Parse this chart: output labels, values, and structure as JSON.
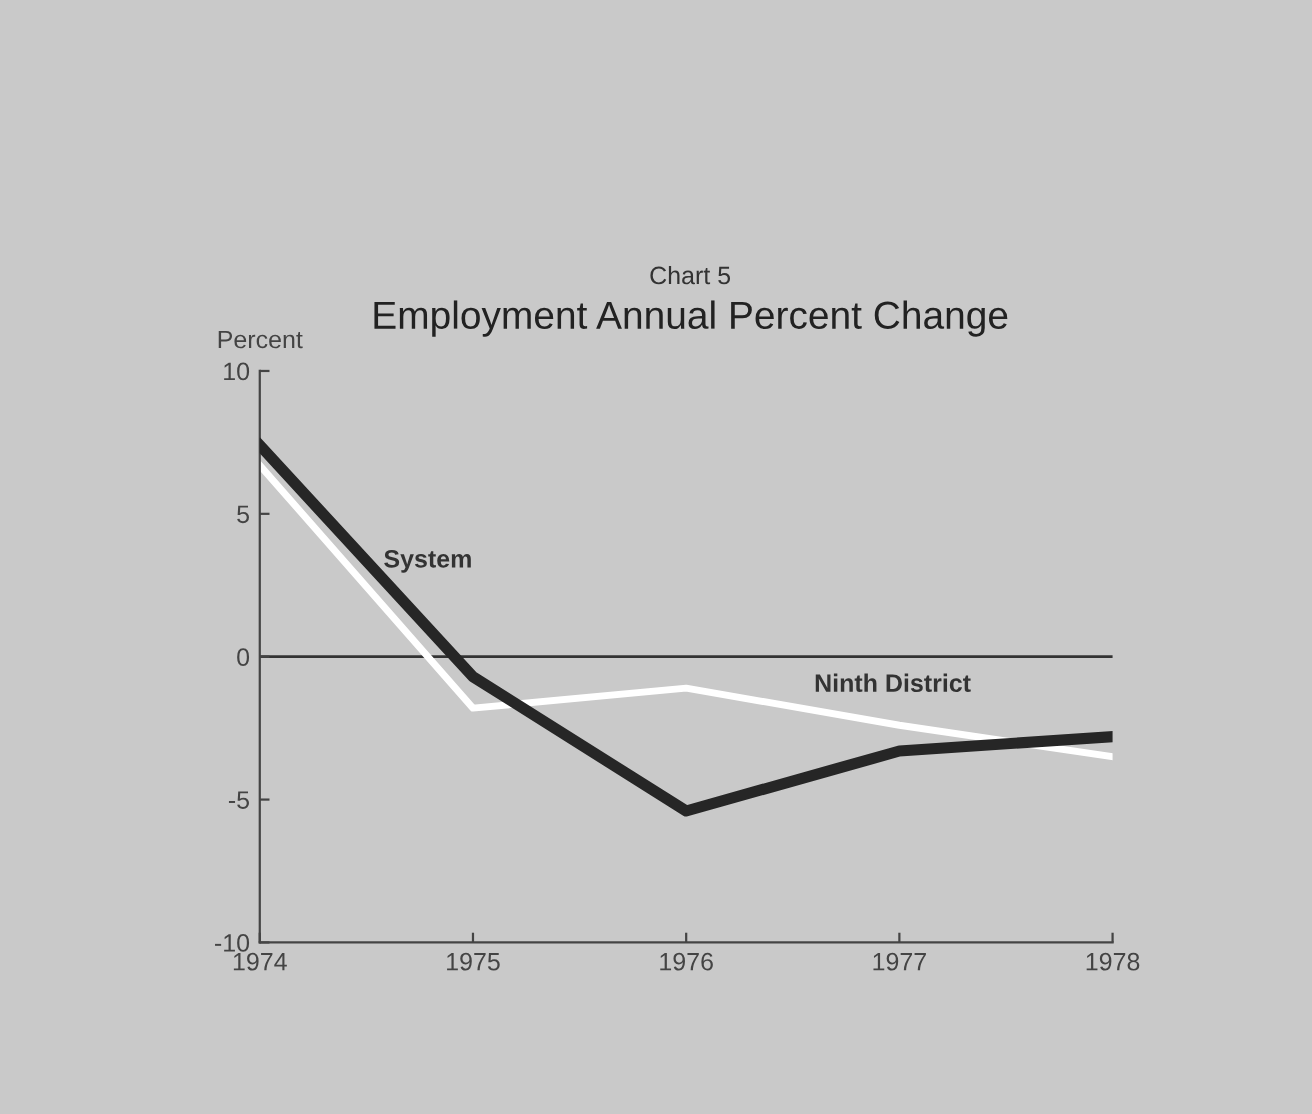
{
  "chart_data": {
    "type": "line",
    "title": "Chart 5",
    "subtitle": "Employment Annual Percent Change",
    "ylabel": "Percent",
    "x": [
      1974,
      1975,
      1976,
      1977,
      1978
    ],
    "series": [
      {
        "name": "Ninth District",
        "color": "#ffffff",
        "values": [
          6.7,
          -1.8,
          -1.1,
          -2.4,
          -3.5
        ]
      },
      {
        "name": "System",
        "color": "#262626",
        "values": [
          7.4,
          -0.7,
          -5.4,
          -3.3,
          -2.8
        ]
      }
    ],
    "xlim": [
      1974,
      1978
    ],
    "xticks": [
      1974,
      1975,
      1976,
      1977,
      1978
    ],
    "ylim": [
      -10,
      10
    ],
    "yticks": [
      -10,
      -5,
      0,
      5,
      10
    ],
    "ref_lines": [
      {
        "axis": "y",
        "value": 0,
        "color": "#333333"
      }
    ],
    "grid": false,
    "marker": "none",
    "line_style": "solid"
  }
}
